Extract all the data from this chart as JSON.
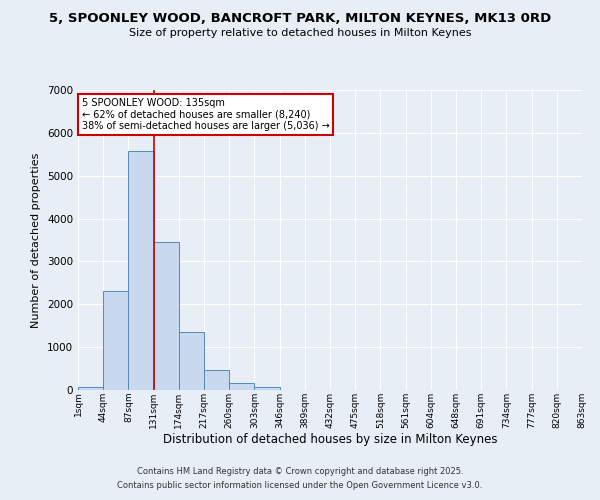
{
  "title": "5, SPOONLEY WOOD, BANCROFT PARK, MILTON KEYNES, MK13 0RD",
  "subtitle": "Size of property relative to detached houses in Milton Keynes",
  "xlabel": "Distribution of detached houses by size in Milton Keynes",
  "ylabel": "Number of detached properties",
  "bar_color": "#c8d8ee",
  "bar_edge_color": "#5588bb",
  "background_color": "#e8eef5",
  "grid_color": "#ffffff",
  "bins": [
    "1sqm",
    "44sqm",
    "87sqm",
    "131sqm",
    "174sqm",
    "217sqm",
    "260sqm",
    "303sqm",
    "346sqm",
    "389sqm",
    "432sqm",
    "475sqm",
    "518sqm",
    "561sqm",
    "604sqm",
    "648sqm",
    "691sqm",
    "734sqm",
    "777sqm",
    "820sqm",
    "863sqm"
  ],
  "values": [
    65,
    2300,
    5570,
    3460,
    1360,
    460,
    160,
    60,
    0,
    0,
    0,
    0,
    0,
    0,
    0,
    0,
    0,
    0,
    0,
    0
  ],
  "ylim": [
    0,
    7000
  ],
  "yticks": [
    0,
    1000,
    2000,
    3000,
    4000,
    5000,
    6000,
    7000
  ],
  "property_line_bin_index": 3,
  "annotation_line1": "5 SPOONLEY WOOD: 135sqm",
  "annotation_line2": "← 62% of detached houses are smaller (8,240)",
  "annotation_line3": "38% of semi-detached houses are larger (5,036) →",
  "annotation_box_color": "#ffffff",
  "annotation_box_edge_color": "#cc0000",
  "footer1": "Contains HM Land Registry data © Crown copyright and database right 2025.",
  "footer2": "Contains public sector information licensed under the Open Government Licence v3.0."
}
